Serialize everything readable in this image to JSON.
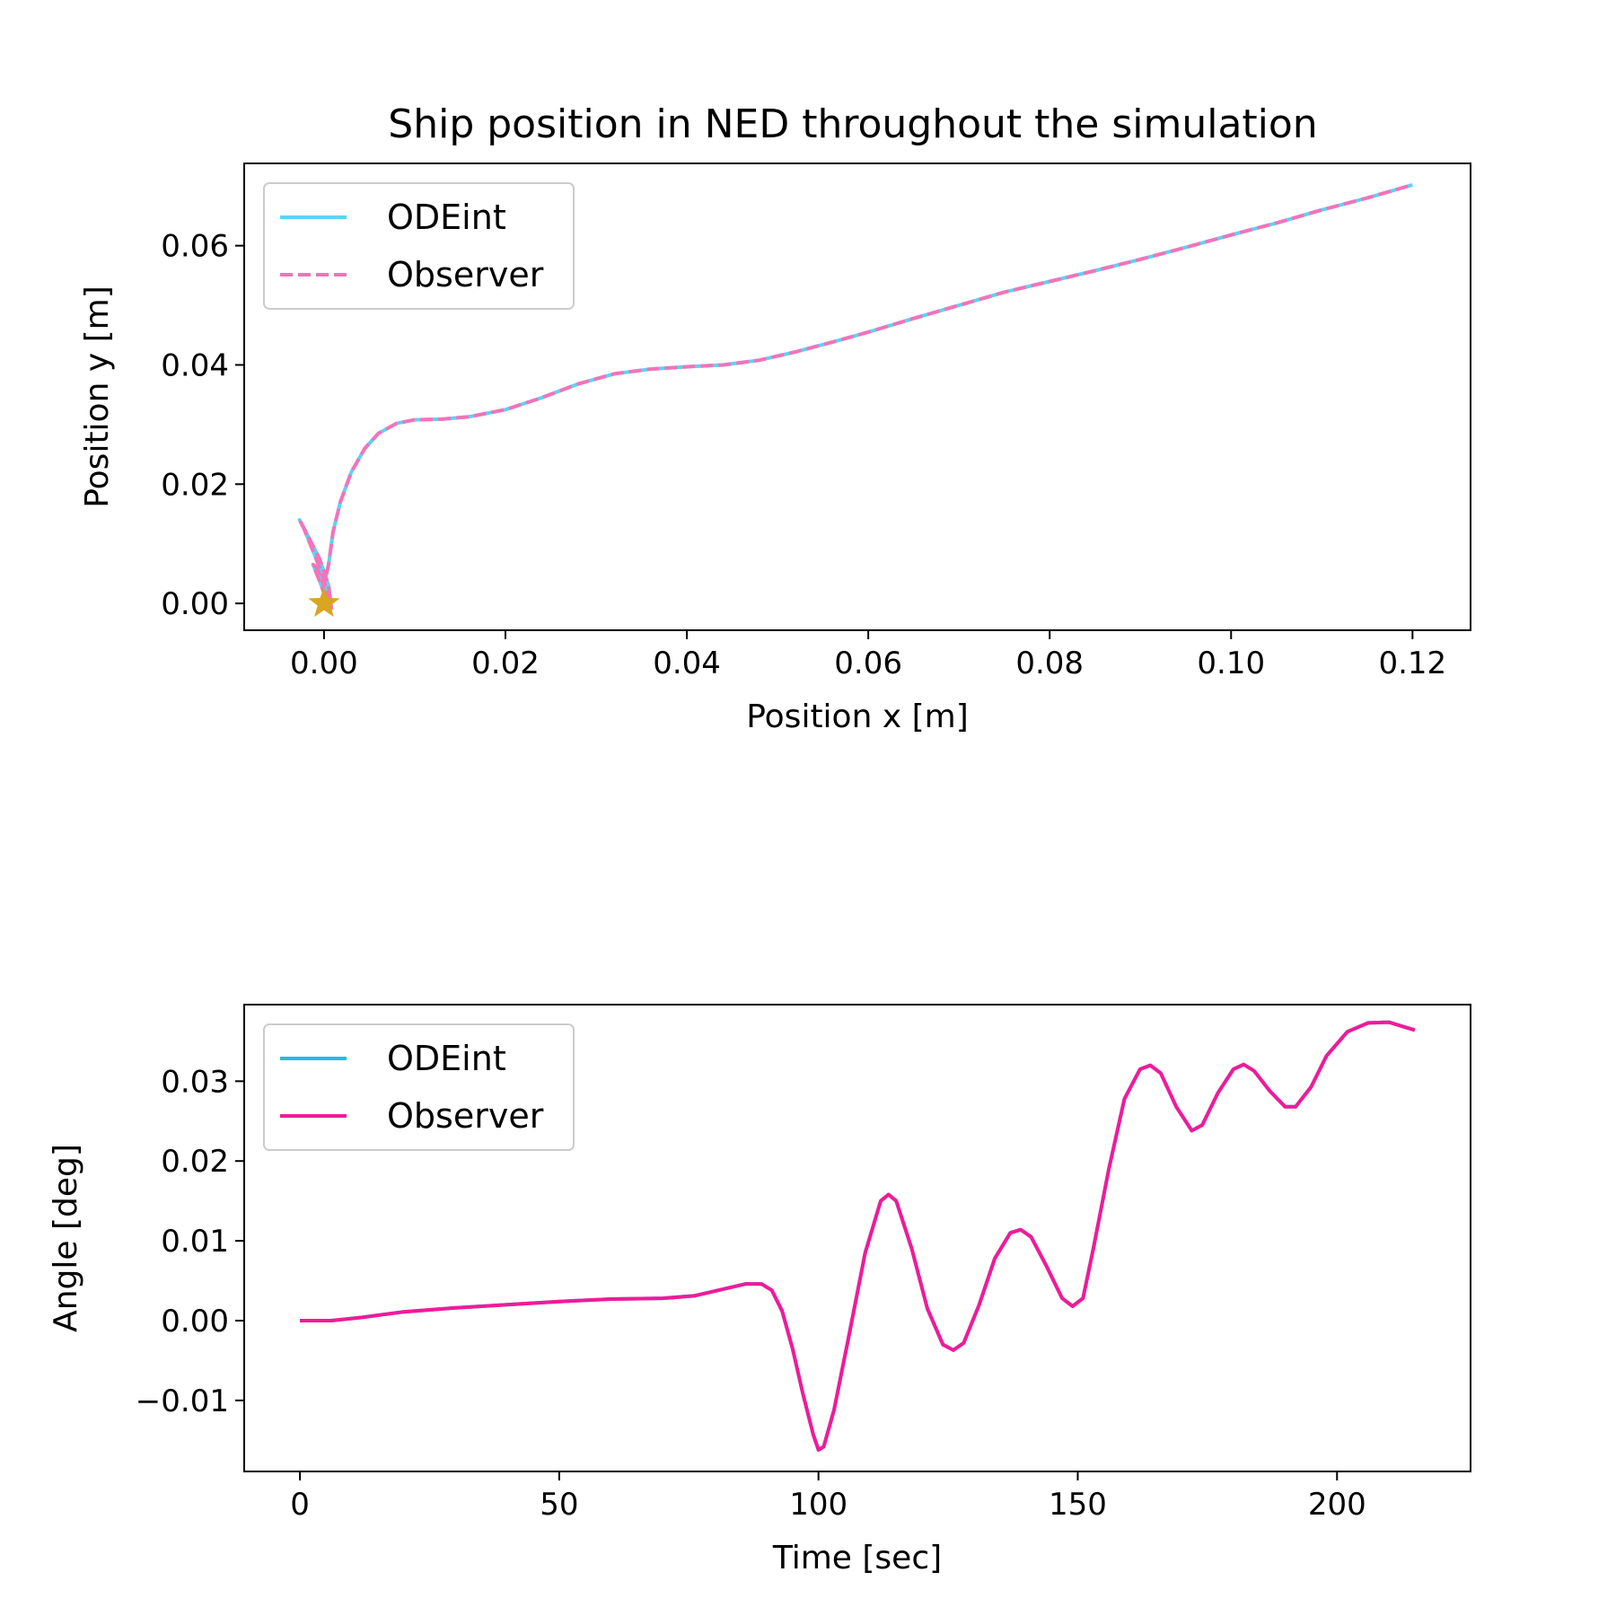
{
  "figure": {
    "title": "Ship position in NED throughout the simulation"
  },
  "chart_data": [
    {
      "type": "line",
      "title": "Ship position in NED throughout the simulation",
      "xlabel": "Position x [m]",
      "ylabel": "Position y [m]",
      "xlim": [
        -0.0088,
        0.1264
      ],
      "ylim": [
        -0.0045,
        0.0738
      ],
      "xticks": [
        0.0,
        0.02,
        0.04,
        0.06,
        0.08,
        0.1,
        0.12
      ],
      "xtick_labels": [
        "0.00",
        "0.02",
        "0.04",
        "0.06",
        "0.08",
        "0.10",
        "0.12"
      ],
      "yticks": [
        0.0,
        0.02,
        0.04,
        0.06
      ],
      "ytick_labels": [
        "0.00",
        "0.02",
        "0.04",
        "0.06"
      ],
      "grid": false,
      "legend_position": "top-left",
      "start_marker": {
        "x": 0.0,
        "y": 0.0,
        "color": "#daa520"
      },
      "series": [
        {
          "name": "ODEint",
          "color": "#5bd3f5",
          "dash": "solid",
          "points": [
            [
              0.0,
              0.0
            ],
            [
              0.0008,
              -0.0008
            ],
            [
              0.0005,
              0.003
            ],
            [
              -0.0005,
              0.0075
            ],
            [
              -0.002,
              0.012
            ],
            [
              -0.0027,
              0.014
            ],
            [
              -0.0022,
              0.0125
            ],
            [
              -0.001,
              0.008
            ],
            [
              0.0,
              0.004
            ],
            [
              0.0004,
              0.0
            ],
            [
              -0.0003,
              0.003
            ],
            [
              -0.0012,
              0.0065
            ],
            [
              -0.0008,
              0.006
            ],
            [
              0.0,
              0.003
            ],
            [
              0.0005,
              0.0065
            ],
            [
              0.001,
              0.012
            ],
            [
              0.0018,
              0.017
            ],
            [
              0.003,
              0.022
            ],
            [
              0.0045,
              0.026
            ],
            [
              0.006,
              0.0285
            ],
            [
              0.008,
              0.0302
            ],
            [
              0.01,
              0.0308
            ],
            [
              0.013,
              0.0309
            ],
            [
              0.016,
              0.0313
            ],
            [
              0.02,
              0.0325
            ],
            [
              0.024,
              0.0345
            ],
            [
              0.028,
              0.0368
            ],
            [
              0.032,
              0.0385
            ],
            [
              0.036,
              0.0393
            ],
            [
              0.04,
              0.0397
            ],
            [
              0.044,
              0.04
            ],
            [
              0.048,
              0.0408
            ],
            [
              0.052,
              0.0422
            ],
            [
              0.056,
              0.0438
            ],
            [
              0.06,
              0.0455
            ],
            [
              0.065,
              0.0478
            ],
            [
              0.07,
              0.05
            ],
            [
              0.075,
              0.0522
            ],
            [
              0.08,
              0.054
            ],
            [
              0.085,
              0.0558
            ],
            [
              0.09,
              0.0577
            ],
            [
              0.095,
              0.0597
            ],
            [
              0.1,
              0.0618
            ],
            [
              0.105,
              0.0638
            ],
            [
              0.11,
              0.066
            ],
            [
              0.115,
              0.068
            ],
            [
              0.12,
              0.0702
            ]
          ]
        },
        {
          "name": "Observer",
          "color": "#f473b9",
          "dash": "dashed",
          "points": [
            [
              0.0,
              0.0
            ],
            [
              0.0008,
              -0.0008
            ],
            [
              0.0005,
              0.003
            ],
            [
              -0.0005,
              0.0075
            ],
            [
              -0.002,
              0.012
            ],
            [
              -0.0027,
              0.014
            ],
            [
              -0.0022,
              0.0125
            ],
            [
              -0.001,
              0.008
            ],
            [
              0.0,
              0.004
            ],
            [
              0.0004,
              0.0
            ],
            [
              -0.0003,
              0.003
            ],
            [
              -0.0012,
              0.0065
            ],
            [
              -0.0008,
              0.006
            ],
            [
              0.0,
              0.003
            ],
            [
              0.0005,
              0.0065
            ],
            [
              0.001,
              0.012
            ],
            [
              0.0018,
              0.017
            ],
            [
              0.003,
              0.022
            ],
            [
              0.0045,
              0.026
            ],
            [
              0.006,
              0.0285
            ],
            [
              0.008,
              0.0302
            ],
            [
              0.01,
              0.0308
            ],
            [
              0.013,
              0.0309
            ],
            [
              0.016,
              0.0313
            ],
            [
              0.02,
              0.0325
            ],
            [
              0.024,
              0.0345
            ],
            [
              0.028,
              0.0368
            ],
            [
              0.032,
              0.0385
            ],
            [
              0.036,
              0.0393
            ],
            [
              0.04,
              0.0397
            ],
            [
              0.044,
              0.04
            ],
            [
              0.048,
              0.0408
            ],
            [
              0.052,
              0.0422
            ],
            [
              0.056,
              0.0438
            ],
            [
              0.06,
              0.0455
            ],
            [
              0.065,
              0.0478
            ],
            [
              0.07,
              0.05
            ],
            [
              0.075,
              0.0522
            ],
            [
              0.08,
              0.054
            ],
            [
              0.085,
              0.0558
            ],
            [
              0.09,
              0.0577
            ],
            [
              0.095,
              0.0597
            ],
            [
              0.1,
              0.0618
            ],
            [
              0.105,
              0.0638
            ],
            [
              0.11,
              0.066
            ],
            [
              0.115,
              0.068
            ],
            [
              0.12,
              0.0702
            ]
          ]
        }
      ]
    },
    {
      "type": "line",
      "title": "",
      "xlabel": "Time [sec]",
      "ylabel": "Angle [deg]",
      "xlim": [
        -10.75,
        225.75
      ],
      "ylim": [
        -0.0189,
        0.0396
      ],
      "xticks": [
        0,
        50,
        100,
        150,
        200
      ],
      "xtick_labels": [
        "0",
        "50",
        "100",
        "150",
        "200"
      ],
      "yticks": [
        -0.01,
        0.0,
        0.01,
        0.02,
        0.03
      ],
      "ytick_labels": [
        "−0.01",
        "0.00",
        "0.01",
        "0.02",
        "0.03"
      ],
      "grid": false,
      "legend_position": "top-left",
      "series": [
        {
          "name": "ODEint",
          "color": "#1ebcf0",
          "dash": "solid",
          "points": [
            [
              0,
              0.0
            ],
            [
              6,
              0.0
            ],
            [
              12,
              0.0004
            ],
            [
              20,
              0.0011
            ],
            [
              30,
              0.0016
            ],
            [
              40,
              0.002
            ],
            [
              50,
              0.0024
            ],
            [
              60,
              0.0027
            ],
            [
              70,
              0.0028
            ],
            [
              76,
              0.0031
            ],
            [
              82,
              0.004
            ],
            [
              86,
              0.0046
            ],
            [
              89,
              0.0046
            ],
            [
              91,
              0.0038
            ],
            [
              93,
              0.0012
            ],
            [
              95,
              -0.0035
            ],
            [
              97,
              -0.0092
            ],
            [
              99,
              -0.0143
            ],
            [
              100,
              -0.0162
            ],
            [
              101,
              -0.0158
            ],
            [
              103,
              -0.0112
            ],
            [
              106,
              -0.0015
            ],
            [
              109,
              0.0085
            ],
            [
              112,
              0.015
            ],
            [
              113.5,
              0.0158
            ],
            [
              115,
              0.015
            ],
            [
              118,
              0.009
            ],
            [
              121,
              0.0015
            ],
            [
              124,
              -0.003
            ],
            [
              126,
              -0.0037
            ],
            [
              128,
              -0.0028
            ],
            [
              131,
              0.002
            ],
            [
              134,
              0.0078
            ],
            [
              137,
              0.011
            ],
            [
              139,
              0.0114
            ],
            [
              141,
              0.0105
            ],
            [
              144,
              0.0068
            ],
            [
              147,
              0.0028
            ],
            [
              149,
              0.0018
            ],
            [
              151,
              0.0028
            ],
            [
              153,
              0.009
            ],
            [
              156,
              0.019
            ],
            [
              159,
              0.0278
            ],
            [
              162,
              0.0315
            ],
            [
              164,
              0.032
            ],
            [
              166,
              0.031
            ],
            [
              169,
              0.0268
            ],
            [
              172,
              0.0238
            ],
            [
              174,
              0.0245
            ],
            [
              177,
              0.0285
            ],
            [
              180,
              0.0315
            ],
            [
              182,
              0.0321
            ],
            [
              184,
              0.0313
            ],
            [
              187,
              0.0288
            ],
            [
              190,
              0.0268
            ],
            [
              192,
              0.0268
            ],
            [
              195,
              0.0293
            ],
            [
              198,
              0.0332
            ],
            [
              202,
              0.0362
            ],
            [
              206,
              0.0373
            ],
            [
              210,
              0.0374
            ],
            [
              213,
              0.0368
            ],
            [
              215,
              0.0364
            ]
          ]
        },
        {
          "name": "Observer",
          "color": "#f21a9a",
          "dash": "solid",
          "points": [
            [
              0,
              0.0
            ],
            [
              6,
              0.0
            ],
            [
              12,
              0.0004
            ],
            [
              20,
              0.0011
            ],
            [
              30,
              0.0016
            ],
            [
              40,
              0.002
            ],
            [
              50,
              0.0024
            ],
            [
              60,
              0.0027
            ],
            [
              70,
              0.0028
            ],
            [
              76,
              0.0031
            ],
            [
              82,
              0.004
            ],
            [
              86,
              0.0046
            ],
            [
              89,
              0.0046
            ],
            [
              91,
              0.0038
            ],
            [
              93,
              0.0012
            ],
            [
              95,
              -0.0035
            ],
            [
              97,
              -0.0092
            ],
            [
              99,
              -0.0143
            ],
            [
              100,
              -0.0162
            ],
            [
              101,
              -0.0158
            ],
            [
              103,
              -0.0112
            ],
            [
              106,
              -0.0015
            ],
            [
              109,
              0.0085
            ],
            [
              112,
              0.015
            ],
            [
              113.5,
              0.0158
            ],
            [
              115,
              0.015
            ],
            [
              118,
              0.009
            ],
            [
              121,
              0.0015
            ],
            [
              124,
              -0.003
            ],
            [
              126,
              -0.0037
            ],
            [
              128,
              -0.0028
            ],
            [
              131,
              0.002
            ],
            [
              134,
              0.0078
            ],
            [
              137,
              0.011
            ],
            [
              139,
              0.0114
            ],
            [
              141,
              0.0105
            ],
            [
              144,
              0.0068
            ],
            [
              147,
              0.0028
            ],
            [
              149,
              0.0018
            ],
            [
              151,
              0.0028
            ],
            [
              153,
              0.009
            ],
            [
              156,
              0.019
            ],
            [
              159,
              0.0278
            ],
            [
              162,
              0.0315
            ],
            [
              164,
              0.032
            ],
            [
              166,
              0.031
            ],
            [
              169,
              0.0268
            ],
            [
              172,
              0.0238
            ],
            [
              174,
              0.0245
            ],
            [
              177,
              0.0285
            ],
            [
              180,
              0.0315
            ],
            [
              182,
              0.0321
            ],
            [
              184,
              0.0313
            ],
            [
              187,
              0.0288
            ],
            [
              190,
              0.0268
            ],
            [
              192,
              0.0268
            ],
            [
              195,
              0.0293
            ],
            [
              198,
              0.0332
            ],
            [
              202,
              0.0362
            ],
            [
              206,
              0.0373
            ],
            [
              210,
              0.0374
            ],
            [
              213,
              0.0368
            ],
            [
              215,
              0.0364
            ]
          ]
        }
      ]
    }
  ]
}
